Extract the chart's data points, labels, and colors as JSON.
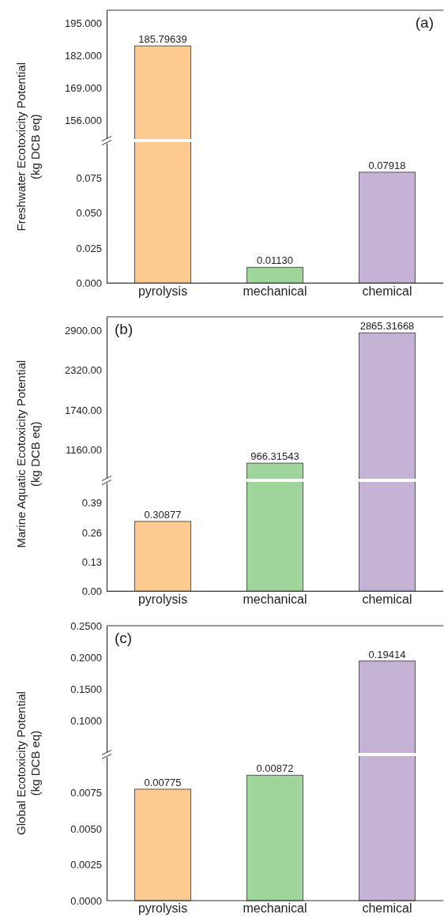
{
  "chart_data": [
    {
      "type": "bar",
      "categories": [
        null,
        null,
        null
      ],
      "colors": [
        "#fdcb8f",
        null,
        null
      ],
      "values": [
        185.79639,
        null,
        null
      ],
      "value_labels": [
        "185.79639",
        null,
        null
      ],
      "ylim": [
        149,
        200
      ],
      "yticks": [
        {
          "value": 156,
          "label": "156.000"
        },
        {
          "value": 169,
          "label": "169.000"
        },
        {
          "value": 182,
          "label": "182.000"
        },
        {
          "value": 195,
          "label": "195.000"
        }
      ],
      "tick_labels": "y",
      "annotations": [
        "(a)"
      ]
    },
    {
      "type": "bar",
      "categories": [
        "pyrolysis",
        "mechanical",
        "chemical"
      ],
      "colors": [
        null,
        "#9dd59b",
        "#c5b3d6"
      ],
      "values": [
        null,
        0.0113,
        0.07918
      ],
      "value_labels": [
        null,
        "0.01130",
        "0.07918"
      ],
      "ylim": [
        0,
        0.1
      ],
      "yticks": [
        {
          "value": 0,
          "label": "0.000"
        },
        {
          "value": 0.025,
          "label": "0.025"
        },
        {
          "value": 0.05,
          "label": "0.050"
        },
        {
          "value": 0.075,
          "label": "0.075"
        }
      ],
      "ylabel": "Freshwater Ecotoxicity Potential\n(kg DCB eq)"
    },
    {
      "type": "bar",
      "categories": [
        null,
        null,
        null
      ],
      "colors": [
        null,
        "#9dd59b",
        "#c5b3d6"
      ],
      "values": [
        null,
        966.31543,
        2865.31668
      ],
      "value_labels": [
        null,
        "966.31543",
        "2865.31668"
      ],
      "ylim": [
        750,
        3100
      ],
      "yticks": [
        {
          "value": 1160,
          "label": "1160.00"
        },
        {
          "value": 1740,
          "label": "1740.00"
        },
        {
          "value": 2320,
          "label": "2320.00"
        },
        {
          "value": 2900,
          "label": "2900.00"
        }
      ],
      "tick_labels": "y",
      "annotations": [
        "(b)"
      ]
    },
    {
      "type": "bar",
      "categories": [
        "pyrolysis",
        "mechanical",
        "chemical"
      ],
      "colors": [
        "#fdcb8f",
        null,
        null
      ],
      "values": [
        0.30877,
        null,
        null
      ],
      "value_labels": [
        "0.30877",
        null,
        null
      ],
      "ylim": [
        0,
        0.48
      ],
      "yticks": [
        {
          "value": 0,
          "label": "0.00"
        },
        {
          "value": 0.13,
          "label": "0.13"
        },
        {
          "value": 0.26,
          "label": "0.26"
        },
        {
          "value": 0.39,
          "label": "0.39"
        }
      ],
      "ylabel": "Marine Aquatic Ecotoxicity Potential\n(kg DCB eq)"
    },
    {
      "type": "bar",
      "categories": [
        null,
        null,
        null
      ],
      "colors": [
        null,
        null,
        "#c5b3d6"
      ],
      "values": [
        null,
        null,
        0.19414
      ],
      "value_labels": [
        null,
        null,
        "0.19414"
      ],
      "ylim": [
        0.05,
        0.25
      ],
      "yticks": [
        {
          "value": 0.1,
          "label": "0.1000"
        },
        {
          "value": 0.15,
          "label": "0.1500"
        },
        {
          "value": 0.2,
          "label": "0.2000"
        },
        {
          "value": 0.25,
          "label": "0.2500"
        }
      ],
      "tick_labels": "y",
      "annotations": [
        "(c)"
      ]
    },
    {
      "type": "bar",
      "categories": [
        "pyrolysis",
        "mechanical",
        "chemical"
      ],
      "colors": [
        "#fdcb8f",
        "#9dd59b",
        null
      ],
      "values": [
        0.00775,
        0.00872,
        null
      ],
      "value_labels": [
        "0.00775",
        "0.00872",
        null
      ],
      "ylim": [
        0,
        0.01
      ],
      "yticks": [
        {
          "value": 0,
          "label": "0.0000"
        },
        {
          "value": 0.0025,
          "label": "0.0025"
        },
        {
          "value": 0.005,
          "label": "0.0050"
        },
        {
          "value": 0.0075,
          "label": "0.0075"
        }
      ],
      "ylabel": "Global Ecotoxicity Potential\n(kg DCB eq)"
    }
  ]
}
